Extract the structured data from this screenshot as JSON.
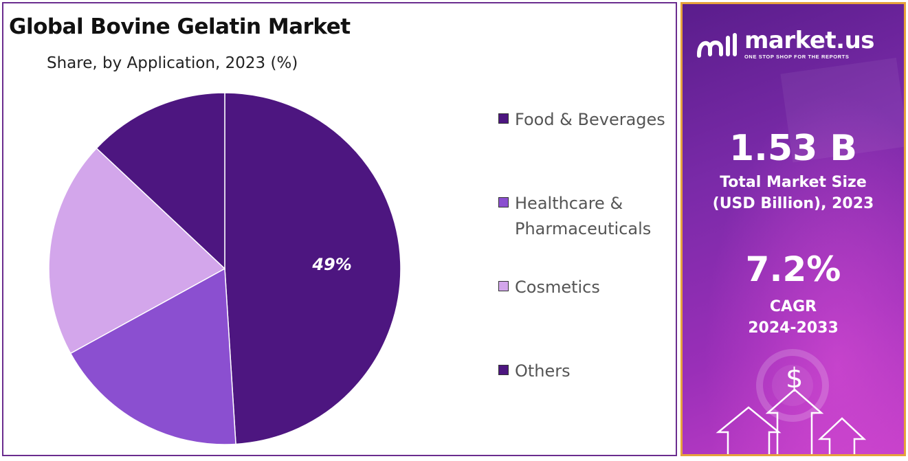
{
  "chart_data": {
    "type": "pie",
    "title": "Global Bovine Gelatin Market",
    "subtitle": "Share, by Application, 2023 (%)",
    "categories": [
      "Food & Beverages",
      "Healthcare & Pharmaceuticals",
      "Cosmetics",
      "Others"
    ],
    "values": [
      49,
      18,
      20,
      13
    ],
    "data_labels": [
      "49%",
      "",
      "",
      ""
    ],
    "colors": [
      "#4d1680",
      "#8b4fd0",
      "#d3a6eb",
      "#4d1680"
    ],
    "legend_position": "right"
  },
  "legend": {
    "items": [
      {
        "label": "Food & Beverages",
        "color": "#4d1680"
      },
      {
        "label": "Healthcare & Pharmaceuticals",
        "color": "#8b4fd0"
      },
      {
        "label": "Cosmetics",
        "color": "#d3a6eb"
      },
      {
        "label": "Others",
        "color": "#4d1680"
      }
    ]
  },
  "sidebar": {
    "brand": "market.us",
    "tagline": "ONE STOP SHOP FOR THE REPORTS",
    "market_size_value": "1.53 B",
    "market_size_label_1": "Total Market Size",
    "market_size_label_2": "(USD Billion), 2023",
    "cagr_value": "7.2%",
    "cagr_label_1": "CAGR",
    "cagr_label_2": "2024-2033",
    "dollar_symbol": "$",
    "accent_color": "#e6a23c"
  }
}
